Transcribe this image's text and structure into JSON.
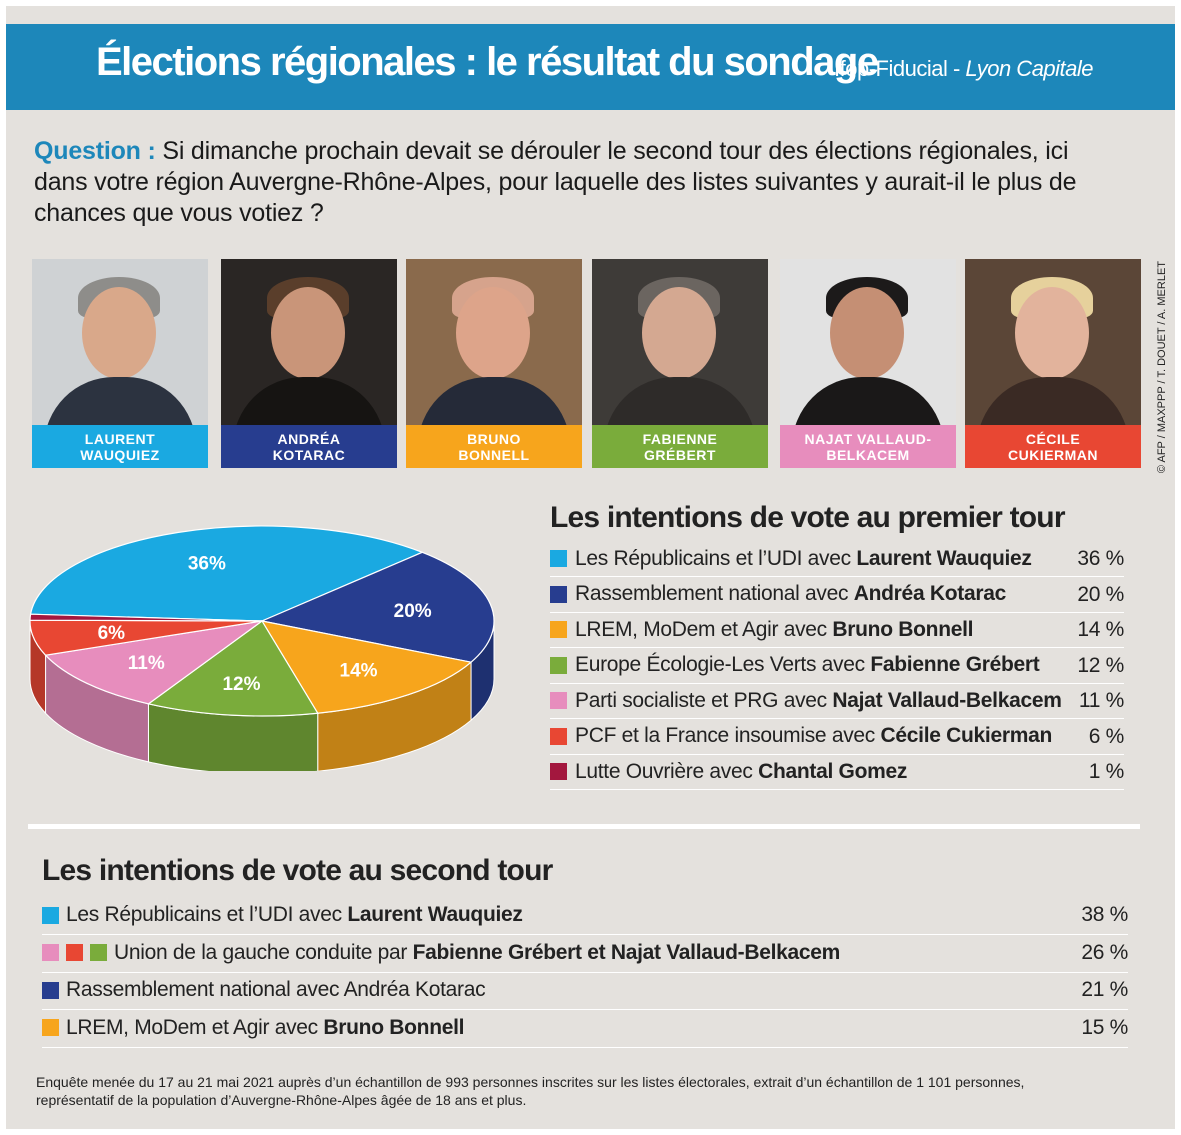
{
  "header": {
    "title": "Élections régionales : le résultat du sondage",
    "source_prefix": "Ifop-Fiducial - ",
    "source_outlet": "Lyon Capitale"
  },
  "question": {
    "label": "Question :",
    "text": " Si dimanche prochain devait se dérouler le second tour des élections régionales, ici dans votre région Auvergne-Rhône-Alpes, pour laquelle des listes suivantes y aurait-il le plus de chances que vous votiez ?"
  },
  "candidates": [
    {
      "line1": "LAURENT",
      "line2": "WAUQUIEZ",
      "color": "#1aa9e1"
    },
    {
      "line1": "ANDRÉA",
      "line2": "KOTARAC",
      "color": "#273d8f"
    },
    {
      "line1": "BRUNO",
      "line2": "BONNELL",
      "color": "#f7a51c"
    },
    {
      "line1": "FABIENNE",
      "line2": "GRÉBERT",
      "color": "#7aac3b"
    },
    {
      "line1": "NAJAT VALLAUD-",
      "line2": "BELKACEM",
      "color": "#e78dbd"
    },
    {
      "line1": "CÉCILE",
      "line2": "CUKIERMAN",
      "color": "#e84733"
    }
  ],
  "photo_credit": "© AFP / MAXPPP / T. DOUET / A. MERLET",
  "first_round": {
    "title": "Les intentions de vote au premier tour",
    "rows": [
      {
        "prefix": "Les Républicains et l’UDI avec ",
        "bold": "Laurent Wauquiez",
        "pct": "36 %",
        "color": "#1aa9e1"
      },
      {
        "prefix": "Rassemblement national avec ",
        "bold": "Andréa Kotarac",
        "pct": "20 %",
        "color": "#273d8f"
      },
      {
        "prefix": "LREM, MoDem et Agir avec ",
        "bold": "Bruno Bonnell",
        "pct": "14 %",
        "color": "#f7a51c"
      },
      {
        "prefix": "Europe Écologie-Les Verts avec ",
        "bold": "Fabienne Grébert",
        "pct": "12 %",
        "color": "#7aac3b"
      },
      {
        "prefix": "Parti socialiste et PRG avec ",
        "bold": "Najat Vallaud-Belkacem",
        "pct": "11 %",
        "color": "#e78dbd"
      },
      {
        "prefix": "PCF et la France insoumise avec ",
        "bold": "Cécile Cukierman",
        "pct": "6 %",
        "color": "#e84733"
      },
      {
        "prefix": "Lutte Ouvrière avec ",
        "bold": "Chantal Gomez",
        "pct": "1 %",
        "color": "#a3173e"
      }
    ]
  },
  "second_round": {
    "title": "Les intentions de vote au second tour",
    "rows": [
      {
        "prefix": "Les Républicains et l’UDI avec ",
        "bold": "Laurent Wauquiez",
        "pct": "38 %",
        "colors": [
          "#1aa9e1"
        ]
      },
      {
        "prefix": "Union de la gauche conduite par ",
        "bold": "Fabienne Grébert et Najat Vallaud-Belkacem",
        "pct": "26 %",
        "colors": [
          "#e78dbd",
          "#e84733",
          "#7aac3b"
        ]
      },
      {
        "prefix": "Rassemblement national avec Andréa Kotarac",
        "bold": "",
        "pct": "21 %",
        "colors": [
          "#273d8f"
        ]
      },
      {
        "prefix": "LREM, MoDem et Agir avec ",
        "bold": "Bruno Bonnell",
        "pct": "15 %",
        "colors": [
          "#f7a51c"
        ]
      }
    ]
  },
  "footnote": "Enquête menée du 17 au 21 mai 2021 auprès d’un échantillon de 993 personnes inscrites sur les listes électorales, extrait d’un échantillon de 1 101 personnes, représentatif de la population d’Auvergne-Rhône-Alpes âgée de 18 ans et plus.",
  "chart_data": {
    "type": "pie",
    "title": "Les intentions de vote au premier tour",
    "categories": [
      "Les Républicains et l’UDI avec Laurent Wauquiez",
      "Rassemblement national avec Andréa Kotarac",
      "LREM, MoDem et Agir avec Bruno Bonnell",
      "Europe Écologie-Les Verts avec Fabienne Grébert",
      "Parti socialiste et PRG avec Najat Vallaud-Belkacem",
      "PCF et la France insoumise avec Cécile Cukierman",
      "Lutte Ouvrière avec Chantal Gomez"
    ],
    "values": [
      36,
      20,
      14,
      12,
      11,
      6,
      1
    ],
    "labels": [
      "36%",
      "20%",
      "14%",
      "12%",
      "11%",
      "6%",
      ""
    ],
    "colors": [
      "#1aa9e1",
      "#273d8f",
      "#f7a51c",
      "#7aac3b",
      "#e78dbd",
      "#e84733",
      "#a3173e"
    ]
  }
}
